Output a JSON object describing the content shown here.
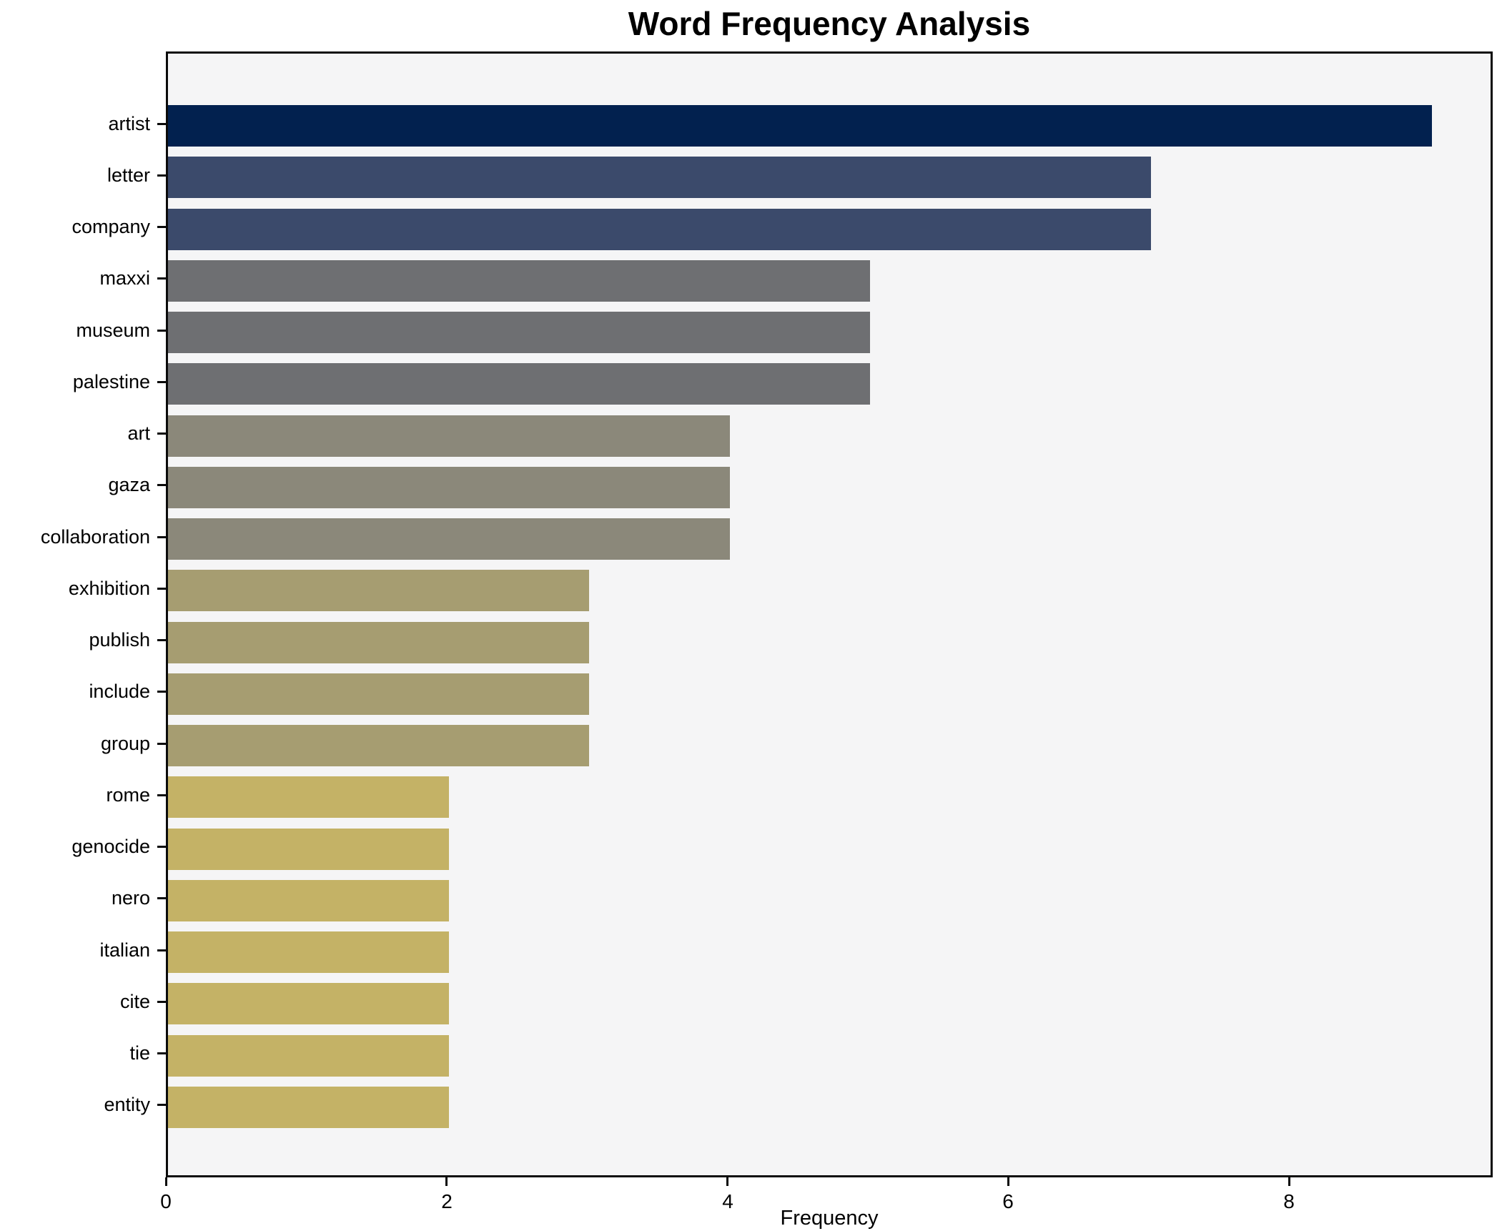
{
  "figure": {
    "title": "Word Frequency Analysis",
    "xlabel": "Frequency"
  },
  "chart_data": {
    "type": "bar",
    "orientation": "horizontal",
    "title": "Word Frequency Analysis",
    "xlabel": "Frequency",
    "ylabel": "",
    "categories": [
      "artist",
      "letter",
      "company",
      "maxxi",
      "museum",
      "palestine",
      "art",
      "gaza",
      "collaboration",
      "exhibition",
      "publish",
      "include",
      "group",
      "rome",
      "genocide",
      "nero",
      "italian",
      "cite",
      "tie",
      "entity"
    ],
    "values": [
      9,
      7,
      7,
      5,
      5,
      5,
      4,
      4,
      4,
      3,
      3,
      3,
      3,
      2,
      2,
      2,
      2,
      2,
      2,
      2
    ],
    "bar_colors": [
      "#02214f",
      "#3b4a6b",
      "#3b4a6b",
      "#6e6f72",
      "#6e6f72",
      "#6e6f72",
      "#8b887a",
      "#8b887a",
      "#8b887a",
      "#a69d71",
      "#a69d71",
      "#a69d71",
      "#a69d71",
      "#c4b266",
      "#c4b266",
      "#c4b266",
      "#c4b266",
      "#c4b266",
      "#c4b266",
      "#c4b266"
    ],
    "xlim": [
      0,
      9.45
    ],
    "xticks": [
      0,
      2,
      4,
      6,
      8
    ],
    "grid": false,
    "legend_position": "none",
    "plot_bg": "#f5f5f6",
    "spine_color": "#0b0b0b",
    "bar_height_frac": 0.8
  }
}
